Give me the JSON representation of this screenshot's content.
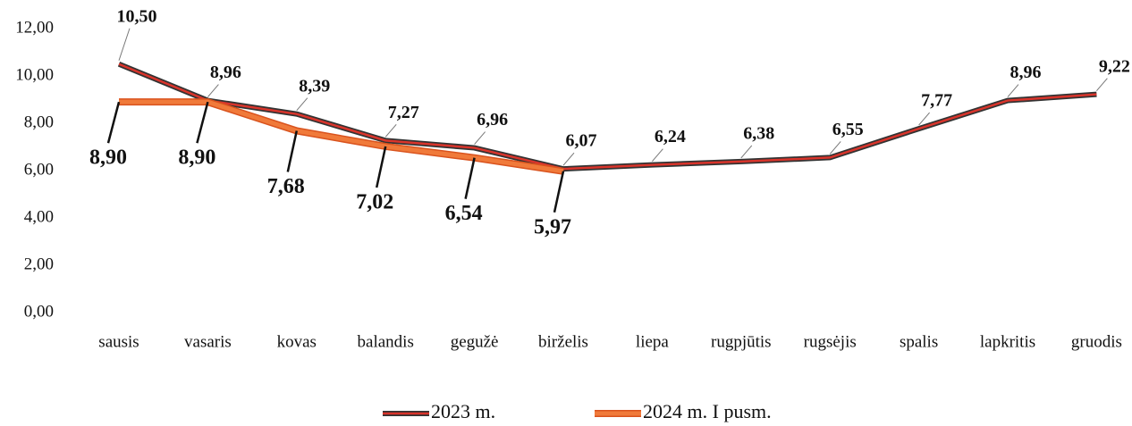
{
  "chart_data": {
    "type": "line",
    "categories": [
      "sausis",
      "vasaris",
      "kovas",
      "balandis",
      "gegužė",
      "birželis",
      "liepa",
      "rugpjūtis",
      "rugsėjis",
      "spalis",
      "lapkritis",
      "gruodis"
    ],
    "series": [
      {
        "name": "2023 m.",
        "color": "#d9342b",
        "values": [
          10.5,
          8.96,
          8.39,
          7.27,
          6.96,
          6.07,
          6.24,
          6.38,
          6.55,
          7.77,
          8.96,
          9.22
        ],
        "value_labels": [
          "10,50",
          "8,96",
          "8,39",
          "7,27",
          "6,96",
          "6,07",
          "6,24",
          "6,38",
          "6,55",
          "7,77",
          "8,96",
          "9,22"
        ]
      },
      {
        "name": "2024 m. I pusm.",
        "color": "#f07a3a",
        "values": [
          8.9,
          8.9,
          7.68,
          7.02,
          6.54,
          5.97,
          null,
          null,
          null,
          null,
          null,
          null
        ],
        "value_labels": [
          "8,90",
          "8,90",
          "7,68",
          "7,02",
          "6,54",
          "5,97",
          null,
          null,
          null,
          null,
          null,
          null
        ]
      }
    ],
    "ylim": [
      0,
      12
    ],
    "yticks": [
      {
        "value": 0,
        "label": "0,00"
      },
      {
        "value": 2,
        "label": "2,00"
      },
      {
        "value": 4,
        "label": "4,00"
      },
      {
        "value": 6,
        "label": "6,00"
      },
      {
        "value": 8,
        "label": "8,00"
      },
      {
        "value": 10,
        "label": "10,00"
      },
      {
        "value": 12,
        "label": "12,00"
      }
    ],
    "grid": false,
    "legend": "bottom"
  }
}
